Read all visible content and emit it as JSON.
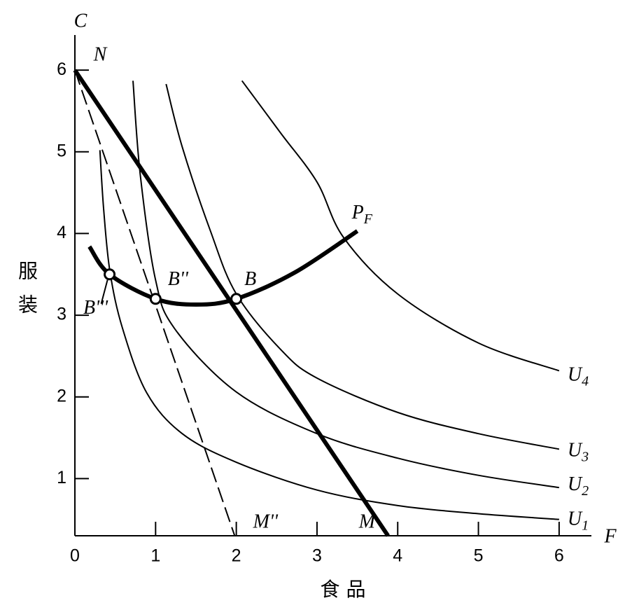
{
  "chart_data": {
    "type": "line",
    "x_label": "F",
    "y_label": "C",
    "x_title": "食 品",
    "y_title": "服装",
    "xlim": [
      0,
      6.4
    ],
    "ylim": [
      0.3,
      6.43
    ],
    "xticks": [
      0,
      1,
      2,
      3,
      4,
      5,
      6
    ],
    "yticks": [
      1,
      2,
      3,
      4,
      5,
      6
    ],
    "series": [
      {
        "name": "U",
        "sub": "1",
        "color": "#000000",
        "x": [
          0.31,
          0.357,
          0.435,
          0.59,
          0.89,
          1.33,
          2,
          3,
          4,
          5,
          6
        ],
        "y": [
          5.02,
          4.29,
          3.53,
          2.84,
          2.05,
          1.55,
          1.2,
          0.86,
          0.67,
          0.57,
          0.5
        ]
      },
      {
        "name": "U",
        "sub": "2",
        "color": "#000000",
        "x": [
          0.72,
          0.81,
          1,
          1.24,
          2,
          3,
          4,
          5,
          6
        ],
        "y": [
          5.87,
          4.72,
          3.43,
          2.83,
          2.06,
          1.55,
          1.25,
          1.04,
          0.89
        ]
      },
      {
        "name": "U",
        "sub": "3",
        "color": "#000000",
        "x": [
          1.13,
          1.33,
          1.68,
          2,
          2.55,
          3,
          4,
          5,
          6
        ],
        "y": [
          5.83,
          5.06,
          4.03,
          3.26,
          2.58,
          2.23,
          1.81,
          1.55,
          1.36
        ]
      },
      {
        "name": "U",
        "sub": "4",
        "color": "#000000",
        "x": [
          2.07,
          2.55,
          3,
          3.33,
          4,
          5,
          6
        ],
        "y": [
          5.87,
          5.23,
          4.63,
          3.95,
          3.26,
          2.66,
          2.32
        ]
      },
      {
        "name": "P",
        "sub": "F",
        "color": "#000000",
        "x": [
          0.18,
          0.43,
          1,
          1.5,
          2,
          2.72,
          3.5
        ],
        "y": [
          3.84,
          3.5,
          3.2,
          3.13,
          3.2,
          3.52,
          4.03
        ]
      }
    ],
    "lines": [
      {
        "start": "N",
        "end": "M",
        "dashed": false,
        "x": [
          0,
          3.88
        ],
        "y": [
          6,
          0.3
        ]
      },
      {
        "end": "M''",
        "dashed": true,
        "x": [
          0,
          1.98
        ],
        "y": [
          6,
          0.3
        ]
      }
    ],
    "points": [
      {
        "label": "B'''",
        "x": 0.43,
        "y": 3.5
      },
      {
        "label": "B''",
        "x": 1,
        "y": 3.2
      },
      {
        "label": "B",
        "x": 2,
        "y": 3.2
      }
    ]
  }
}
